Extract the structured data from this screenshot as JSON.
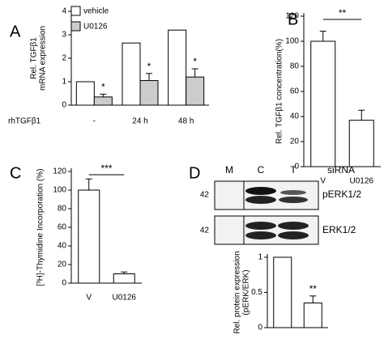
{
  "chart_data": [
    {
      "type": "bar",
      "panel_label": "A",
      "ylabel": [
        "Rel. TGFβ1",
        "mRNA expression"
      ],
      "xlabel": "rhTGFβ1",
      "categories": [
        "-",
        "24 h",
        "48 h"
      ],
      "series": [
        {
          "name": "vehicle",
          "color": "#ffffff",
          "values": [
            1,
            2.65,
            3.2
          ]
        },
        {
          "name": "U0126",
          "color": "#cccccc",
          "values": [
            0.35,
            1.05,
            1.2
          ],
          "errors": [
            0.12,
            0.3,
            0.35
          ],
          "annotations": [
            "*",
            "*",
            "*"
          ]
        }
      ],
      "ylim": [
        0,
        4
      ],
      "yticks": [
        0,
        1,
        2,
        3,
        4
      ],
      "legend": "top-left"
    },
    {
      "type": "bar",
      "panel_label": "B",
      "ylabel": [
        "Rel. TGFβ1 concentration(%)"
      ],
      "categories": [
        "V",
        "U0126"
      ],
      "values": [
        100,
        37
      ],
      "errors": [
        8,
        8
      ],
      "color": "#ffffff",
      "ylim": [
        0,
        120
      ],
      "yticks": [
        0,
        20,
        40,
        60,
        80,
        100,
        120
      ],
      "significance": "**"
    },
    {
      "type": "bar",
      "panel_label": "C",
      "ylabel": [
        "[³H]-Thymidine Incorporation (%)"
      ],
      "categories": [
        "V",
        "U0126"
      ],
      "values": [
        100,
        10
      ],
      "errors": [
        12,
        2
      ],
      "color": "#ffffff",
      "ylim": [
        0,
        120
      ],
      "yticks": [
        0,
        20,
        40,
        60,
        80,
        100,
        120
      ],
      "significance": "***"
    },
    {
      "type": "bar",
      "panel_label": "D",
      "ylabel": [
        "Rel. protein expression",
        "(pERK/ERK)"
      ],
      "categories": [
        null,
        null
      ],
      "values": [
        1,
        0.35
      ],
      "errors": [
        0,
        0.1
      ],
      "color": "#ffffff",
      "annotations": [
        null,
        "**"
      ],
      "ylim": [
        0,
        1
      ],
      "yticks": [
        0,
        0.5,
        1
      ]
    }
  ],
  "blot": {
    "lanes": [
      "M",
      "C",
      "T"
    ],
    "header": "siRNA",
    "rows": [
      {
        "marker": "42",
        "label": "pERK1/2"
      },
      {
        "marker": "42",
        "label": "ERK1/2"
      }
    ]
  }
}
